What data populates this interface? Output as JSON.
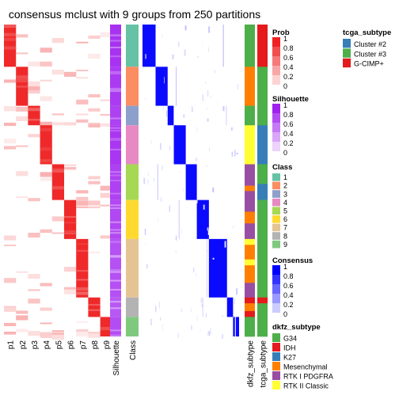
{
  "chart_data": {
    "type": "heatmap",
    "title": "consensus mclust with 9 groups from 250 partitions",
    "membership_columns": [
      "p1",
      "p2",
      "p3",
      "p4",
      "p5",
      "p6",
      "p7",
      "p8",
      "p9"
    ],
    "silhouette_label": "Silhouette",
    "class_label": "Class",
    "annotation_columns": [
      "dkfz_subtype",
      "tcga_subtype"
    ],
    "groups": [
      {
        "class": "1",
        "n": 26,
        "silhouette": 0.92,
        "dkfz": [
          [
            "G34",
            1.0
          ]
        ],
        "tcga": [
          [
            "G-CIMP+",
            1.0
          ]
        ]
      },
      {
        "class": "2",
        "n": 24,
        "silhouette": 0.88,
        "dkfz": [
          [
            "Mesenchymal",
            1.0
          ]
        ],
        "tcga": [
          [
            "Cluster #3",
            1.0
          ]
        ]
      },
      {
        "class": "3",
        "n": 12,
        "silhouette": 0.85,
        "dkfz": [
          [
            "G34",
            1.0
          ]
        ],
        "tcga": [
          [
            "Cluster #3",
            1.0
          ]
        ]
      },
      {
        "class": "4",
        "n": 24,
        "silhouette": 0.9,
        "dkfz": [
          [
            "RTK II Classic",
            1.0
          ]
        ],
        "tcga": [
          [
            "Cluster #2",
            1.0
          ]
        ]
      },
      {
        "class": "5",
        "n": 22,
        "silhouette": 0.85,
        "dkfz": [
          [
            "RTK I PDGFRA",
            0.6
          ],
          [
            "Mesenchymal",
            0.15
          ],
          [
            "RTK I PDGFRA",
            0.25
          ]
        ],
        "tcga": [
          [
            "Cluster #3",
            0.55
          ],
          [
            "Cluster #2",
            0.45
          ]
        ]
      },
      {
        "class": "6",
        "n": 24,
        "silhouette": 0.82,
        "dkfz": [
          [
            "RTK I PDGFRA",
            0.3
          ],
          [
            "Mesenchymal",
            0.3
          ],
          [
            "RTK I PDGFRA",
            0.4
          ]
        ],
        "tcga": [
          [
            "Cluster #3",
            1.0
          ]
        ]
      },
      {
        "class": "7",
        "n": 36,
        "silhouette": 0.78,
        "dkfz": [
          [
            "RTK II Classic",
            0.1
          ],
          [
            "Mesenchymal",
            0.25
          ],
          [
            "RTK II Classic",
            0.1
          ],
          [
            "Mesenchymal",
            0.3
          ],
          [
            "RTK I PDGFRA",
            0.25
          ]
        ],
        "tcga": [
          [
            "Cluster #3",
            1.0
          ]
        ]
      },
      {
        "class": "8",
        "n": 12,
        "silhouette": 0.75,
        "dkfz": [
          [
            "IDH",
            0.3
          ],
          [
            "Mesenchymal",
            0.4
          ],
          [
            "IDH",
            0.3
          ]
        ],
        "tcga": [
          [
            "G-CIMP+",
            0.3
          ],
          [
            "Cluster #3",
            0.7
          ]
        ]
      },
      {
        "class": "9",
        "n": 12,
        "silhouette": 0.8,
        "dkfz": [
          [
            "G34",
            1.0
          ]
        ],
        "tcga": [
          [
            "Cluster #3",
            1.0
          ]
        ]
      }
    ],
    "legends": {
      "prob": {
        "title": "Prob",
        "ticks": [
          "1",
          "0.8",
          "0.6",
          "0.4",
          "0.2",
          "0"
        ]
      },
      "silhouette": {
        "title": "Silhouette",
        "ticks": [
          "1",
          "0.8",
          "0.6",
          "0.4",
          "0.2",
          "0"
        ]
      },
      "class": {
        "title": "Class",
        "items": [
          {
            "label": "1",
            "color": "#66C2A5"
          },
          {
            "label": "2",
            "color": "#FC8D62"
          },
          {
            "label": "3",
            "color": "#8DA0CB"
          },
          {
            "label": "4",
            "color": "#E78AC3"
          },
          {
            "label": "5",
            "color": "#A6D854"
          },
          {
            "label": "6",
            "color": "#FFD92F"
          },
          {
            "label": "7",
            "color": "#E5C494"
          },
          {
            "label": "8",
            "color": "#B3B3B3"
          },
          {
            "label": "9",
            "color": "#7FC97F"
          }
        ]
      },
      "consensus": {
        "title": "Consensus",
        "ticks": [
          "1",
          "0.8",
          "0.6",
          "0.4",
          "0.2",
          "0"
        ]
      },
      "dkfz_subtype": {
        "title": "dkfz_subtype",
        "items": [
          {
            "label": "G34",
            "color": "#4DAF4A"
          },
          {
            "label": "IDH",
            "color": "#E41A1C"
          },
          {
            "label": "K27",
            "color": "#377EB8"
          },
          {
            "label": "Mesenchymal",
            "color": "#FF7F00"
          },
          {
            "label": "RTK I PDGFRA",
            "color": "#984EA3"
          },
          {
            "label": "RTK II Classic",
            "color": "#FFFF33"
          }
        ]
      },
      "tcga_subtype": {
        "title": "tcga_subtype",
        "items": [
          {
            "label": "Cluster #2",
            "color": "#377EB8"
          },
          {
            "label": "Cluster #3",
            "color": "#4DAF4A"
          },
          {
            "label": "G-CIMP+",
            "color": "#E41A1C"
          }
        ]
      }
    },
    "colors": {
      "prob_high": "#EE2222",
      "sil_high": "#A020F0",
      "consensus_high": "#0000FF"
    }
  }
}
